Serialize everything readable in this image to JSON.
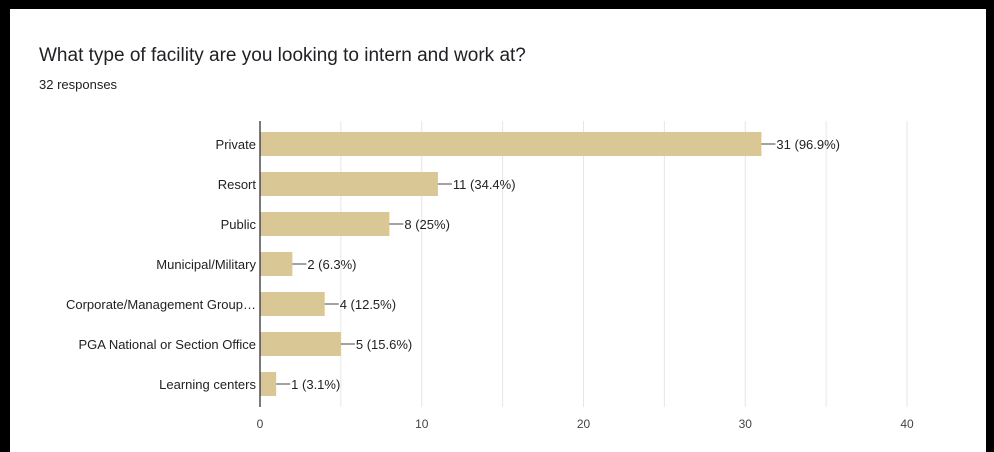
{
  "title": "What type of facility are you looking to intern and work at?",
  "subtitle": "32 responses",
  "colors": {
    "bar": "#d9c796",
    "grid": "#e6e6e6",
    "axis": "#333333"
  },
  "chart_data": {
    "type": "bar",
    "orientation": "horizontal",
    "categories": [
      "Private",
      "Resort",
      "Public",
      "Municipal/Military",
      "Corporate/Management Group…",
      "PGA National or Section Office",
      "Learning centers"
    ],
    "values": [
      31,
      11,
      8,
      2,
      4,
      5,
      1
    ],
    "data_labels": [
      "31 (96.9%)",
      "11 (34.4%)",
      "8 (25%)",
      "2 (6.3%)",
      "4 (12.5%)",
      "5 (15.6%)",
      "1 (3.1%)"
    ],
    "xlim": [
      0,
      40
    ],
    "xticks": [
      0,
      10,
      20,
      30,
      40
    ],
    "grid": true,
    "legend": "none"
  }
}
